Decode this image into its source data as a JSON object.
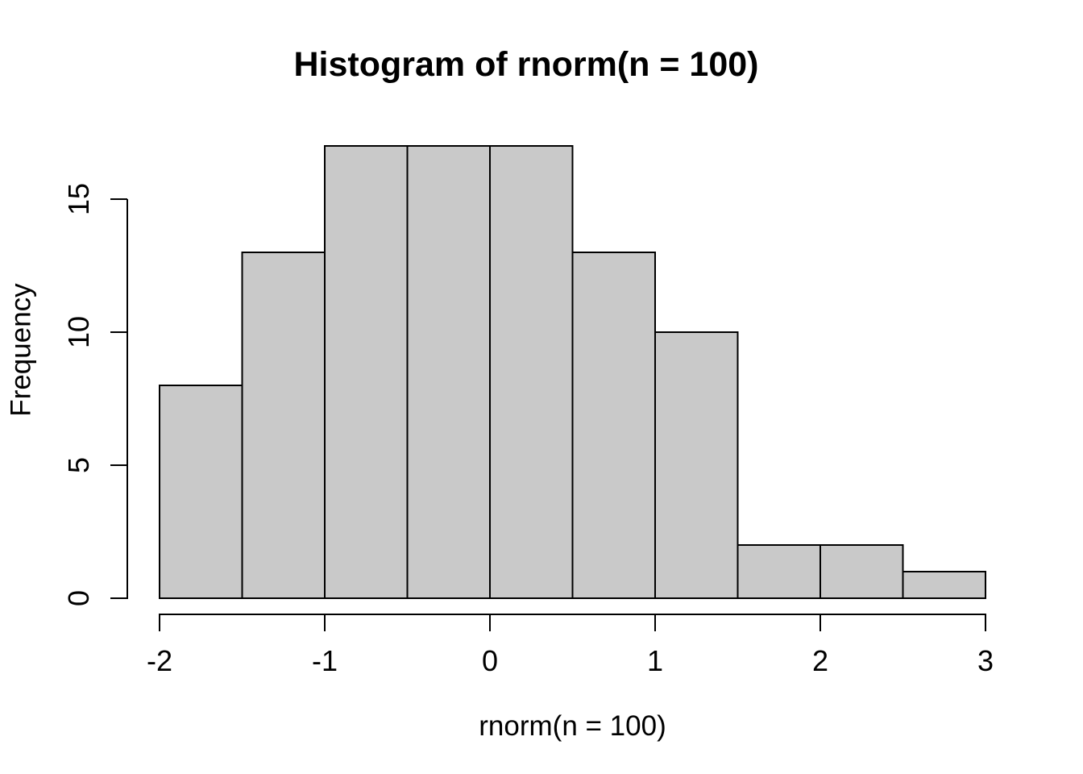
{
  "chart_data": {
    "type": "bar",
    "subtype": "histogram",
    "title": "Histogram of rnorm(n = 100)",
    "xlabel": "rnorm(n = 100)",
    "ylabel": "Frequency",
    "breaks": [
      -2,
      -1.5,
      -1,
      -0.5,
      0,
      0.5,
      1,
      1.5,
      2,
      2.5,
      3
    ],
    "counts": [
      8,
      13,
      17,
      17,
      17,
      13,
      10,
      2,
      2,
      1
    ],
    "x_ticks": [
      -2,
      -1,
      0,
      1,
      2,
      3
    ],
    "y_ticks": [
      0,
      5,
      10,
      15
    ],
    "xlim": [
      -2,
      3
    ],
    "ylim": [
      0,
      17
    ],
    "grid": false,
    "legend": "none",
    "colors": {
      "bar_fill": "#c9c9c9",
      "bar_border": "#000000",
      "axis": "#000000",
      "text": "#000000",
      "background": "#ffffff"
    }
  }
}
